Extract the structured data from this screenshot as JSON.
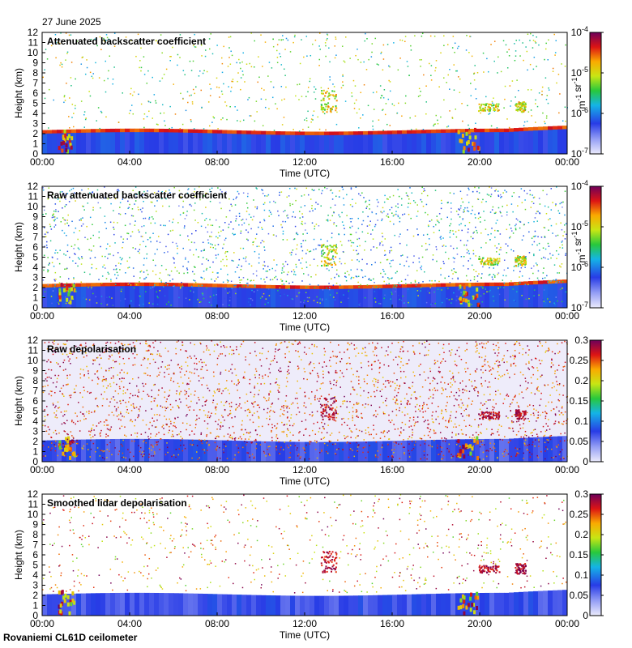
{
  "date": "27 June 2025",
  "footer": "Rovaniemi CL61D ceilometer",
  "xlabel": "Time (UTC)",
  "ylabel": "Height (km)",
  "time_ticks": [
    "00:00",
    "04:00",
    "08:00",
    "12:00",
    "16:00",
    "20:00",
    "00:00"
  ],
  "height_ticks": [
    "0",
    "1",
    "2",
    "3",
    "4",
    "5",
    "6",
    "7",
    "8",
    "9",
    "10",
    "11",
    "12"
  ],
  "chart_data": [
    {
      "type": "heatmap",
      "title": "Attenuated backscatter coefficient",
      "xlabel": "Time (UTC)",
      "ylabel": "Height (km)",
      "xlim": [
        "00:00",
        "00:00"
      ],
      "ylim": [
        0,
        12
      ],
      "colorbar": {
        "scale": "log",
        "min": 1e-07,
        "max": 0.0001,
        "unit": "m-1 sr-1",
        "tick_labels": [
          "10-7",
          "10-6",
          "10-5",
          "10-4"
        ]
      },
      "features": [
        {
          "name": "boundary layer top",
          "height_km": 2.2
        },
        {
          "name": "cloud",
          "time": "13:00",
          "height_km": [
            4.2,
            6.5
          ]
        }
      ]
    },
    {
      "type": "heatmap",
      "title": "Raw attenuated backscatter coefficient",
      "xlabel": "Time (UTC)",
      "ylabel": "Height (km)",
      "xlim": [
        "00:00",
        "00:00"
      ],
      "ylim": [
        0,
        12
      ],
      "colorbar": {
        "scale": "log",
        "min": 1e-07,
        "max": 0.0001,
        "unit": "m-1 sr-1",
        "tick_labels": [
          "10-7",
          "10-6",
          "10-5",
          "10-4"
        ]
      }
    },
    {
      "type": "heatmap",
      "title": "Raw depolarisation",
      "xlabel": "Time (UTC)",
      "ylabel": "Height (km)",
      "xlim": [
        "00:00",
        "00:00"
      ],
      "ylim": [
        0,
        12
      ],
      "colorbar": {
        "scale": "linear",
        "min": 0,
        "max": 0.3,
        "tick_labels": [
          "0",
          "0.05",
          "0.1",
          "0.15",
          "0.2",
          "0.25",
          "0.3"
        ]
      }
    },
    {
      "type": "heatmap",
      "title": "Smoothed lidar depolarisation",
      "xlabel": "Time (UTC)",
      "ylabel": "Height (km)",
      "xlim": [
        "00:00",
        "00:00"
      ],
      "ylim": [
        0,
        12
      ],
      "colorbar": {
        "scale": "linear",
        "min": 0,
        "max": 0.3,
        "tick_labels": [
          "0",
          "0.05",
          "0.1",
          "0.15",
          "0.2",
          "0.25",
          "0.3"
        ]
      }
    }
  ]
}
